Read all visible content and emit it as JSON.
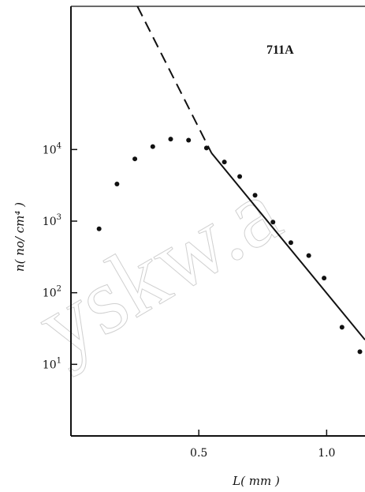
{
  "chart_data": {
    "type": "scatter",
    "panel_label": "711A",
    "xlabel": "L( mm )",
    "ylabel": "n( no/ cm⁴ )",
    "xlim": [
      0.0,
      1.15
    ],
    "ylim": [
      1.0,
      1000000.0
    ],
    "yscale": "log",
    "x_ticks": [
      0.5,
      1.0
    ],
    "x_tick_labels": [
      "0.5",
      "1.0"
    ],
    "y_ticks": [
      10,
      100,
      1000,
      10000
    ],
    "y_tick_labels": [
      {
        "base": "10",
        "exp": "1"
      },
      {
        "base": "10",
        "exp": "2"
      },
      {
        "base": "10",
        "exp": "3"
      },
      {
        "base": "10",
        "exp": "4"
      }
    ],
    "grid": false,
    "watermark": "yskw.a",
    "series": [
      {
        "x": [
          0.11,
          0.18,
          0.25,
          0.32,
          0.39,
          0.46,
          0.53,
          0.6,
          0.66,
          0.72,
          0.79,
          0.86,
          0.93,
          0.99,
          1.06,
          1.13
        ],
        "y": [
          780,
          3300,
          7400,
          11000,
          14000,
          13500,
          10500,
          6700,
          4200,
          2300,
          970,
          500,
          330,
          160,
          33,
          15
        ]
      }
    ],
    "fit_line": {
      "points": [
        [
          0.55,
          8900
        ],
        [
          1.15,
          22
        ]
      ],
      "extrapolated": [
        [
          0.26,
          1000000
        ],
        [
          0.55,
          8900
        ]
      ]
    }
  }
}
